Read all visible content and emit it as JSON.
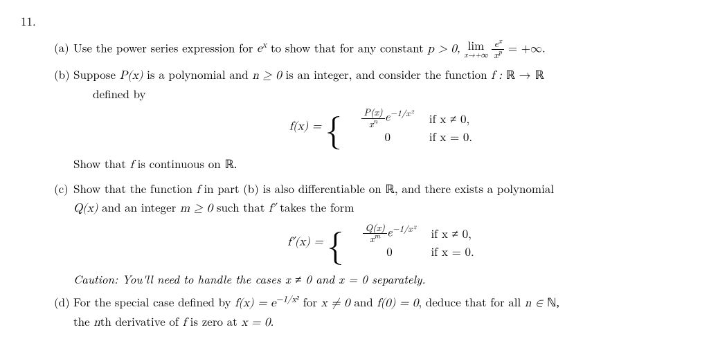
{
  "problem_number": "11.",
  "parts": {
    "a": {
      "label": "(a)",
      "text_before": "Use the power series expression for ",
      "ex": "e",
      "ex_sup": "x",
      "text_mid": " to show that for any constant ",
      "p_gt": "p > 0,   ",
      "lim_top": "lim",
      "lim_sub": "x→+∞",
      "frac_num": "e",
      "frac_num_sup": "x",
      "frac_den": "x",
      "frac_den_sup": "p",
      "eq_inf": " = +∞."
    },
    "b": {
      "label": "(b)",
      "line1_a": "Suppose ",
      "line1_P": "P(x)",
      "line1_b": " is a polynomial and ",
      "line1_n": "n ≥ 0",
      "line1_c": " is an integer, and consider the function ",
      "line1_f": "f : ",
      "line1_R1": "ℝ",
      "line1_arrow": " → ",
      "line1_R2": "ℝ",
      "line1_def": "defined by",
      "eq_lhs": "f(x) = ",
      "case1_frac_num": "P(x)",
      "case1_frac_den": "x",
      "case1_frac_den_sup": "n",
      "case1_e": "e",
      "case1_e_sup": "−1/x²",
      "case1_cond": "if x ≠ 0,",
      "case2_expr": "0",
      "case2_cond": "if x = 0.",
      "line2": "Show that ",
      "line2_f": "f",
      "line2_b": " is continuous on ",
      "line2_R": "ℝ."
    },
    "c": {
      "label": "(c)",
      "text_a": "Show that the function ",
      "text_f": "f",
      "text_b": " in part (b) is also differentiable on ",
      "text_R": "ℝ",
      "text_c": ", and there exists a polynomial",
      "line2_Q": "Q(x)",
      "line2_a": " and an integer ",
      "line2_m": "m ≥ 0",
      "line2_b": " such that ",
      "line2_fp": "f′",
      "line2_c": " takes the form",
      "eq_lhs": "f′(x) = ",
      "case1_frac_num": "Q(x)",
      "case1_frac_den": "x",
      "case1_frac_den_sup": "m",
      "case1_e": "e",
      "case1_e_sup": "−1/x²",
      "case1_cond": "if x ≠ 0,",
      "case2_expr": "0",
      "case2_cond": "if x = 0.",
      "caution": "Caution: You'll need to handle the cases x ≠ 0 and x = 0 separately."
    },
    "d": {
      "label": "(d)",
      "text_a": "For the special case defined by ",
      "text_fx": "f(x) = e",
      "text_fx_sup": "−1/x²",
      "text_b": " for ",
      "text_xne": "x ≠ 0",
      "text_c": " and ",
      "text_f0": "f(0) = 0",
      "text_d": ", deduce that for all ",
      "text_n": "n ∈ ",
      "text_N": "ℕ,",
      "line2_a": "the ",
      "line2_n": "n",
      "line2_b": "th derivative of ",
      "line2_f": "f",
      "line2_c": " is zero at ",
      "line2_x0": "x = 0."
    }
  }
}
